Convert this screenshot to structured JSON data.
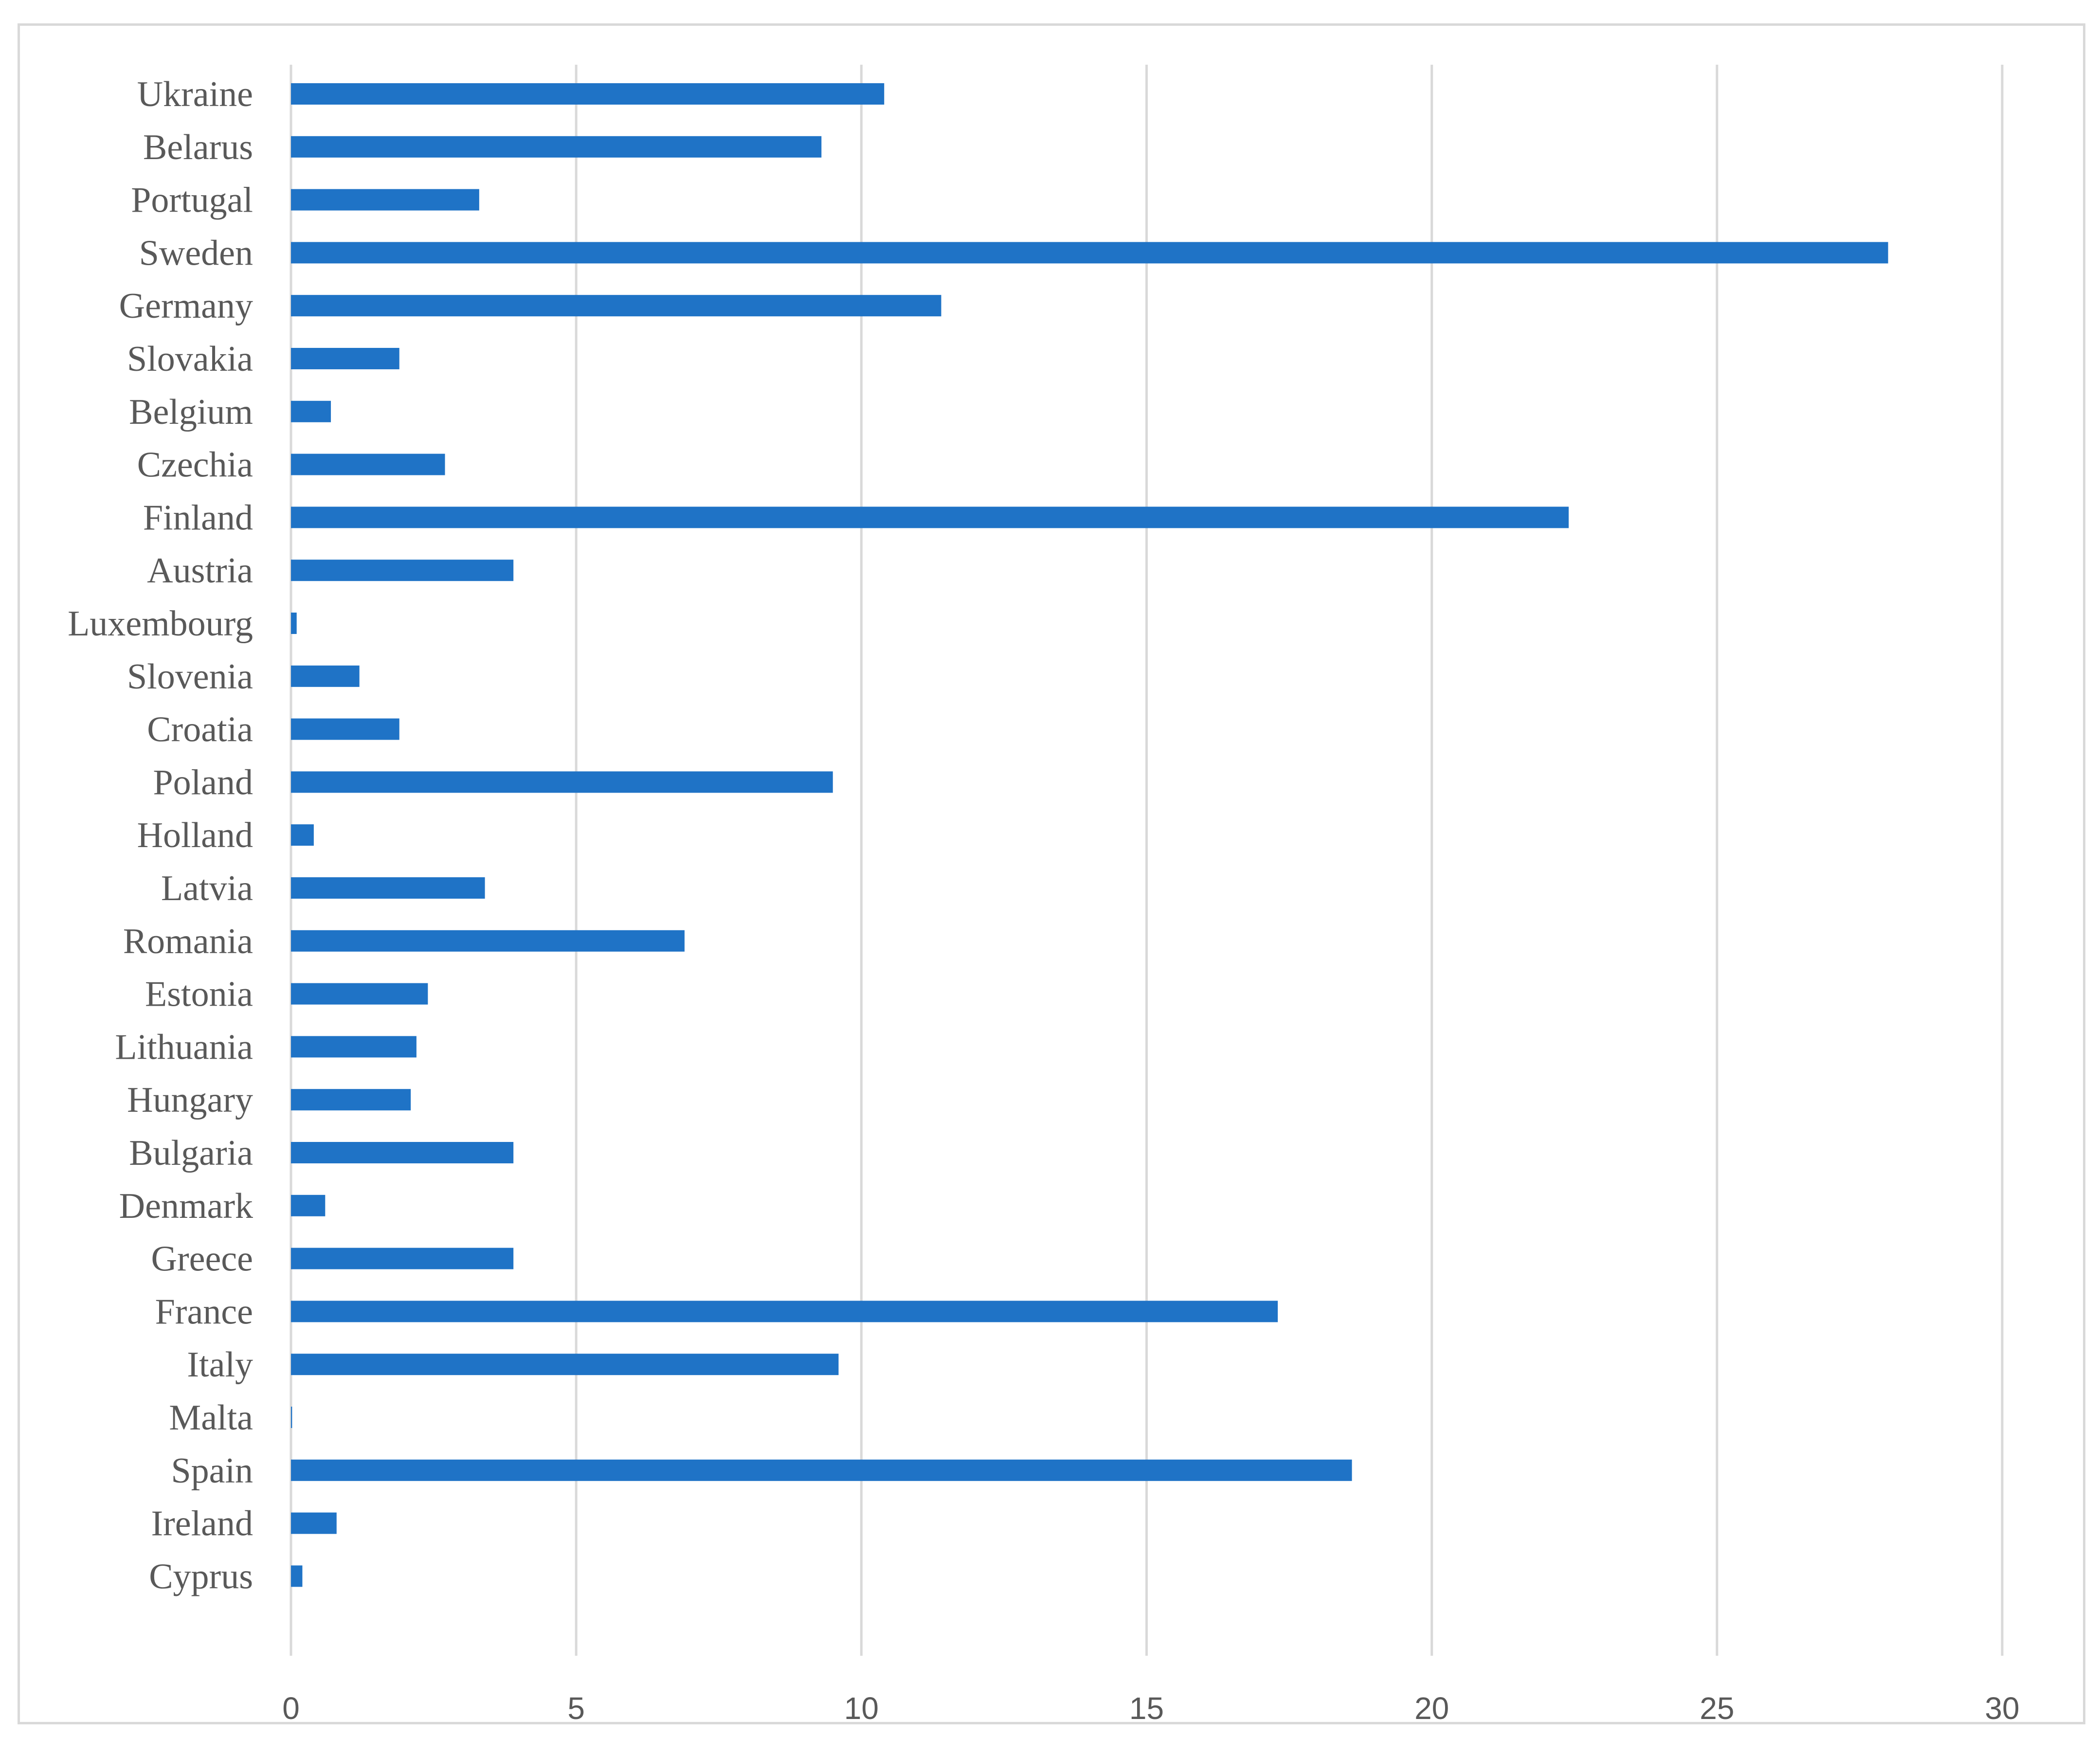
{
  "chart_data": {
    "type": "bar",
    "orientation": "horizontal",
    "categories": [
      "Ukraine",
      "Belarus",
      "Portugal",
      "Sweden",
      "Germany",
      "Slovakia",
      "Belgium",
      "Czechia",
      "Finland",
      "Austria",
      "Luxembourg",
      "Slovenia",
      "Croatia",
      "Poland",
      "Holland",
      "Latvia",
      "Romania",
      "Estonia",
      "Lithuania",
      "Hungary",
      "Bulgaria",
      "Denmark",
      "Greece",
      "France",
      "Italy",
      "Malta",
      "Spain",
      "Ireland",
      "Cyprus"
    ],
    "values": [
      10.4,
      9.3,
      3.3,
      28.0,
      11.4,
      1.9,
      0.7,
      2.7,
      22.4,
      3.9,
      0.1,
      1.2,
      1.9,
      9.5,
      0.4,
      3.4,
      6.9,
      2.4,
      2.2,
      2.1,
      3.9,
      0.6,
      3.9,
      17.3,
      9.6,
      0.02,
      18.6,
      0.8,
      0.2
    ],
    "x_ticks": [
      "0",
      "5",
      "10",
      "15",
      "20",
      "25",
      "30"
    ],
    "xlim": [
      0,
      30
    ],
    "title": "",
    "xlabel": "",
    "ylabel": "",
    "grid": "vertical",
    "legend": "none",
    "bar_color": "#1f73c6"
  }
}
